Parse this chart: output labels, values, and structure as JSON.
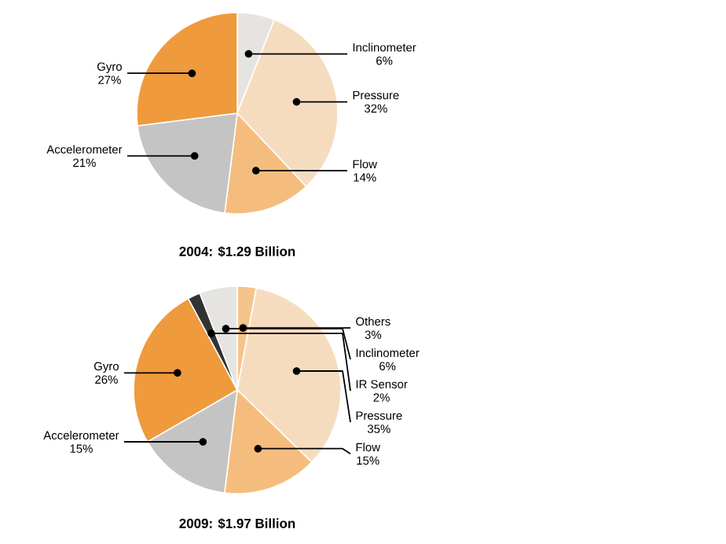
{
  "chart_data": [
    {
      "type": "pie",
      "title": "2004: $1.29 Billion",
      "categories": [
        "Inclinometer",
        "Pressure",
        "Flow",
        "Accelerometer",
        "Gyro"
      ],
      "values": [
        6,
        32,
        14,
        21,
        27
      ],
      "value_labels": [
        "6%",
        "32%",
        "14%",
        "21%",
        "27%"
      ],
      "colors": [
        "#e6e4e1",
        "#f6dcbf",
        "#f5bd7d",
        "#c4c4c4",
        "#ef9a3c"
      ]
    },
    {
      "type": "pie",
      "title": "2009: $1.97 Billion",
      "categories": [
        "Others",
        "Pressure",
        "Flow",
        "Accelerometer",
        "Gyro",
        "IR Sensor",
        "Inclinometer"
      ],
      "values": [
        3,
        35,
        15,
        15,
        26,
        2,
        6
      ],
      "value_labels": [
        "3%",
        "35%",
        "15%",
        "15%",
        "26%",
        "2%",
        "6%"
      ],
      "colors": [
        "#f5c48a",
        "#f6dcbf",
        "#f5bd7d",
        "#c4c4c4",
        "#ef9a3c",
        "#333333",
        "#e6e4e1"
      ]
    }
  ]
}
